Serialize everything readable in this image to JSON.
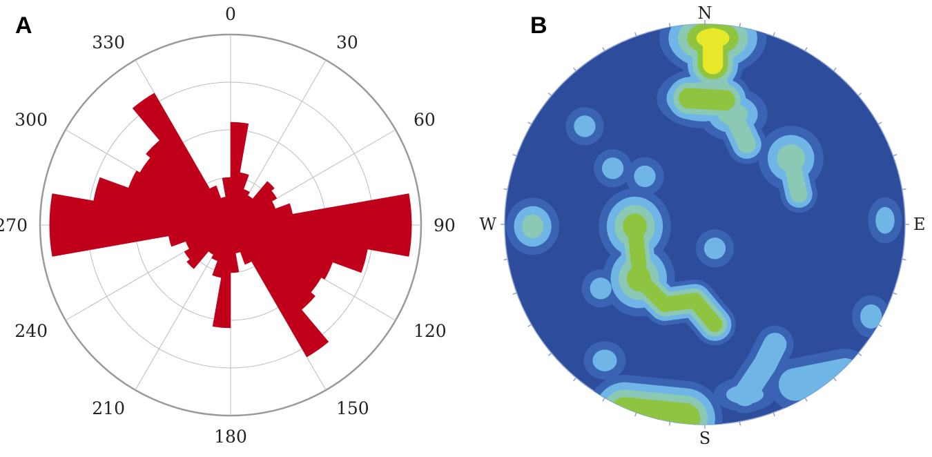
{
  "panels": {
    "a": {
      "letter": "A"
    },
    "b": {
      "letter": "B"
    }
  },
  "chart_data": [
    {
      "type": "rose",
      "title": "",
      "angle_labels": [
        "0",
        "30",
        "60",
        "90",
        "120",
        "150",
        "180",
        "210",
        "240",
        "270",
        "300",
        "330"
      ],
      "sector_width_deg": 10,
      "radial_max": 100,
      "rings": [
        25,
        50,
        75,
        100
      ],
      "sectors": [
        {
          "dir": 0,
          "value": 54
        },
        {
          "dir": 10,
          "value": 28
        },
        {
          "dir": 20,
          "value": 20
        },
        {
          "dir": 30,
          "value": 18
        },
        {
          "dir": 40,
          "value": 30
        },
        {
          "dir": 50,
          "value": 28
        },
        {
          "dir": 60,
          "value": 25
        },
        {
          "dir": 70,
          "value": 33
        },
        {
          "dir": 80,
          "value": 95
        },
        {
          "dir": 90,
          "value": 95
        },
        {
          "dir": 100,
          "value": 73
        },
        {
          "dir": 110,
          "value": 57
        },
        {
          "dir": 120,
          "value": 55
        },
        {
          "dir": 130,
          "value": 58
        },
        {
          "dir": 140,
          "value": 80
        },
        {
          "dir": 150,
          "value": 22
        },
        {
          "dir": 160,
          "value": 15
        },
        {
          "dir": 170,
          "value": 25
        },
        {
          "dir": 180,
          "value": 54
        },
        {
          "dir": 190,
          "value": 28
        },
        {
          "dir": 200,
          "value": 20
        },
        {
          "dir": 210,
          "value": 18
        },
        {
          "dir": 220,
          "value": 30
        },
        {
          "dir": 230,
          "value": 28
        },
        {
          "dir": 240,
          "value": 25
        },
        {
          "dir": 250,
          "value": 33
        },
        {
          "dir": 260,
          "value": 95
        },
        {
          "dir": 270,
          "value": 95
        },
        {
          "dir": 280,
          "value": 73
        },
        {
          "dir": 290,
          "value": 57
        },
        {
          "dir": 300,
          "value": 55
        },
        {
          "dir": 310,
          "value": 58
        },
        {
          "dir": 320,
          "value": 80
        },
        {
          "dir": 330,
          "value": 22
        },
        {
          "dir": 340,
          "value": 15
        },
        {
          "dir": 350,
          "value": 25
        }
      ],
      "bar_color": "#c0001a",
      "grid": true
    },
    {
      "type": "stereonet-density",
      "directions": {
        "north": "N",
        "east": "E",
        "south": "S",
        "west": "W"
      },
      "background_color": "#2d4c9c",
      "level_colors": [
        "#3a63b3",
        "#6fb6e6",
        "#8cc9b4",
        "#8ec440",
        "#e8e82a"
      ],
      "clusters": [
        {
          "cx": 0.04,
          "cy": 0.93,
          "rx": 0.13,
          "ry": 0.05,
          "level": 4,
          "path": [
            [
              0.04,
              0.93
            ],
            [
              0.04,
              0.8
            ]
          ]
        },
        {
          "cx": 0.14,
          "cy": 0.55,
          "rx": 0.09,
          "ry": 0.05,
          "level": 2,
          "path": [
            [
              0.07,
              0.7
            ],
            [
              0.21,
              0.4
            ]
          ]
        },
        {
          "cx": 0.43,
          "cy": 0.33,
          "rx": 0.08,
          "ry": 0.08,
          "level": 2,
          "path": [
            [
              0.43,
              0.33
            ],
            [
              0.47,
              0.15
            ]
          ]
        },
        {
          "cx": -0.35,
          "cy": -0.01,
          "rx": 0.07,
          "ry": 0.08,
          "level": 3,
          "path": [
            [
              -0.35,
              -0.01
            ],
            [
              -0.33,
              -0.2
            ]
          ]
        },
        {
          "cx": -0.33,
          "cy": -0.27,
          "rx": 0.07,
          "ry": 0.08,
          "level": 3,
          "path": [
            [
              -0.33,
              -0.27
            ],
            [
              -0.2,
              -0.4
            ],
            [
              -0.05,
              -0.38
            ],
            [
              0.05,
              -0.5
            ]
          ]
        },
        {
          "cx": -0.86,
          "cy": -0.01,
          "rx": 0.05,
          "ry": 0.06,
          "level": 2,
          "path": []
        },
        {
          "cx": -0.52,
          "cy": -0.32,
          "rx": 0.04,
          "ry": 0.04,
          "level": 1,
          "path": []
        },
        {
          "cx": -0.5,
          "cy": -0.68,
          "rx": 0.05,
          "ry": 0.04,
          "level": 1,
          "path": []
        },
        {
          "cx": 0.05,
          "cy": -0.12,
          "rx": 0.04,
          "ry": 0.04,
          "level": 1,
          "path": []
        },
        {
          "cx": -0.46,
          "cy": 0.28,
          "rx": 0.04,
          "ry": 0.04,
          "level": 1,
          "path": []
        },
        {
          "cx": -0.6,
          "cy": 0.49,
          "rx": 0.04,
          "ry": 0.04,
          "level": 1,
          "path": []
        },
        {
          "cx": -0.3,
          "cy": 0.24,
          "rx": 0.04,
          "ry": 0.04,
          "level": 1,
          "path": []
        },
        {
          "cx": 0.9,
          "cy": 0.02,
          "rx": 0.03,
          "ry": 0.06,
          "level": 1,
          "path": []
        },
        {
          "cx": 0.83,
          "cy": -0.46,
          "rx": 0.04,
          "ry": 0.05,
          "level": 1,
          "path": []
        },
        {
          "cx": -0.01,
          "cy": 0.63,
          "rx": 0.12,
          "ry": 0.04,
          "level": 3,
          "path": [
            [
              -0.08,
              0.63
            ],
            [
              0.1,
              0.62
            ]
          ]
        },
        {
          "cx": -0.3,
          "cy": -0.95,
          "rx": 0.2,
          "ry": 0.04,
          "level": 3,
          "path": [
            [
              -0.4,
              -0.94
            ],
            [
              -0.1,
              -0.97
            ]
          ]
        },
        {
          "cx": 0.2,
          "cy": -0.85,
          "rx": 0.1,
          "ry": 0.03,
          "level": 1,
          "path": [
            [
              0.2,
              -0.85
            ],
            [
              0.3,
              -0.7
            ],
            [
              0.35,
              -0.6
            ]
          ]
        },
        {
          "cx": 0.55,
          "cy": -0.78,
          "rx": 0.15,
          "ry": 0.04,
          "level": 1,
          "path": [
            [
              0.45,
              -0.8
            ],
            [
              0.7,
              -0.75
            ]
          ]
        }
      ]
    }
  ]
}
